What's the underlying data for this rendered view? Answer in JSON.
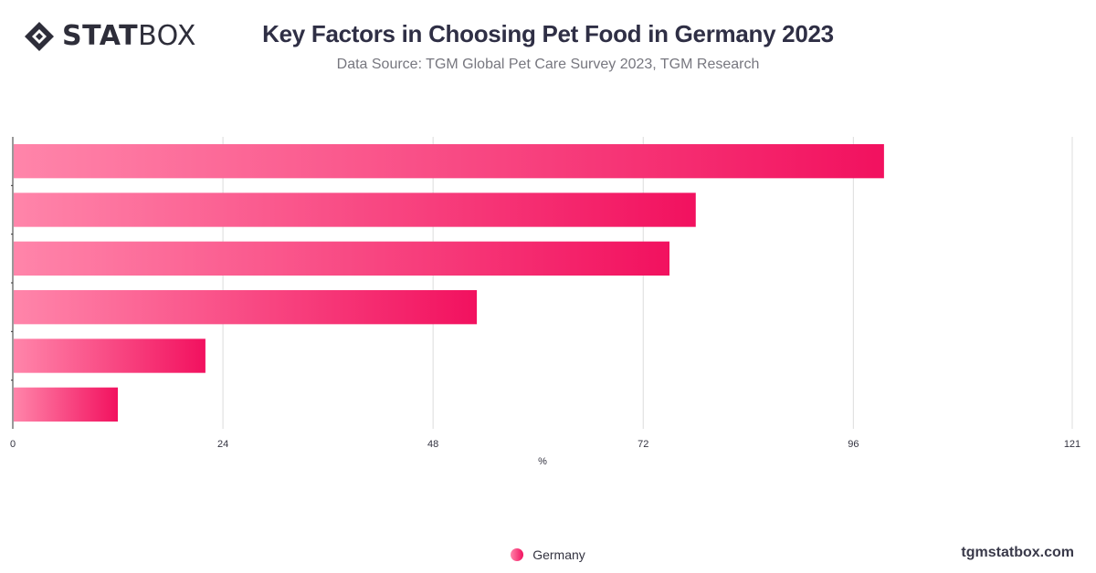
{
  "header": {
    "logo_text_bold": "STAT",
    "logo_text_light": "BOX",
    "title": "Key Factors in Choosing Pet Food in Germany 2023",
    "subtitle": "Data Source: TGM Global Pet Care Survey 2023, TGM Research"
  },
  "footer": {
    "website": "tgmstatbox.com"
  },
  "colors": {
    "bar_start": "#ff85aa",
    "bar_end": "#f2115f",
    "grid": "#dcdcdc",
    "axis": "#333333",
    "text": "#333340"
  },
  "chart_data": {
    "type": "bar",
    "orientation": "horizontal",
    "categories": [
      "",
      "",
      "",
      "",
      "",
      ""
    ],
    "series": [
      {
        "name": "Germany",
        "values": [
          99.5,
          78,
          75,
          53,
          22,
          12
        ]
      }
    ],
    "xlabel": "%",
    "ylabel": "",
    "xlim": [
      0,
      121
    ],
    "xticks": [
      0,
      24,
      48,
      72,
      96,
      121
    ],
    "grid": true,
    "legend_position": "bottom"
  }
}
